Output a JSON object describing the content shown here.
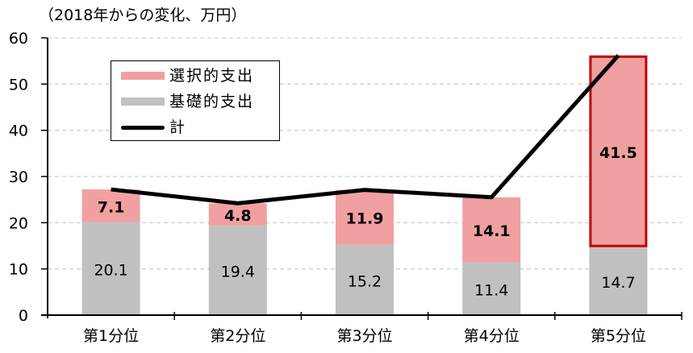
{
  "chart_data": {
    "type": "bar",
    "subtype": "stacked_bar_with_line",
    "title": "",
    "unit_label": "（2018年からの変化、万円）",
    "categories": [
      "第1分位",
      "第2分位",
      "第3分位",
      "第4分位",
      "第5分位"
    ],
    "series": [
      {
        "name": "基礎的支出",
        "type": "bar",
        "color": "#c0c0c0",
        "values": [
          20.1,
          19.4,
          15.2,
          11.4,
          14.7
        ]
      },
      {
        "name": "選択的支出",
        "type": "bar",
        "color": "#f0a0a0",
        "values": [
          7.1,
          4.8,
          11.9,
          14.1,
          41.5
        ]
      },
      {
        "name": "計",
        "type": "line",
        "color": "#000000",
        "values": [
          27.2,
          24.2,
          27.1,
          25.5,
          56.2
        ]
      }
    ],
    "highlight": {
      "category": "第5分位",
      "series": "選択的支出",
      "border_color": "#c00000"
    },
    "xlabel": "",
    "ylabel": "",
    "ylim": [
      0,
      60
    ],
    "yticks": [
      0,
      10,
      20,
      30,
      40,
      50,
      60
    ],
    "grid": {
      "y": true,
      "style": "dashed",
      "color": "#d0d0d0"
    },
    "legend": {
      "position": "upper-left-inside",
      "order": [
        "選択的支出",
        "基礎的支出",
        "計"
      ]
    }
  }
}
